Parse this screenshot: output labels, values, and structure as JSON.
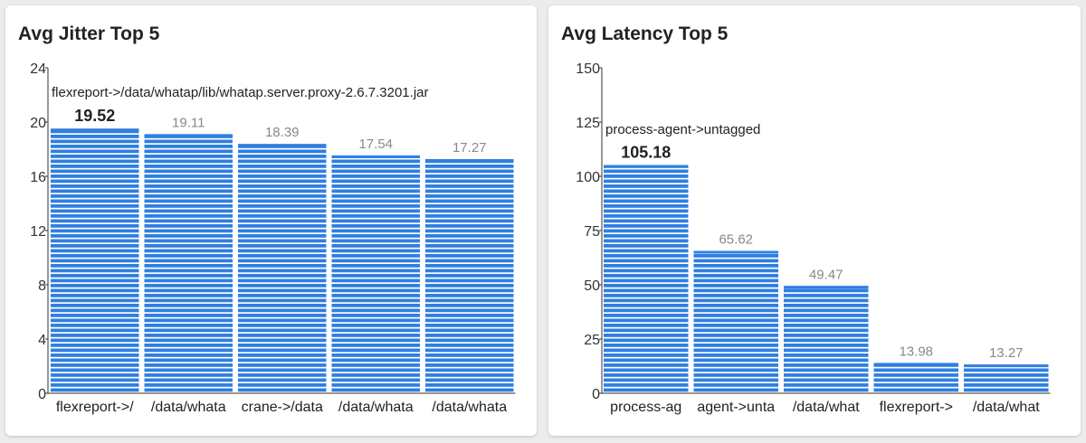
{
  "bar_color": "#2f7fe0",
  "stripe_color": "#ffffff",
  "value_color": "#888888",
  "highlight_value_color": "#222222",
  "panels": [
    {
      "title": "Avg Jitter Top 5",
      "top_label": "flexreport->/data/whatap/lib/whatap.server.proxy-2.6.7.3201.jar"
    },
    {
      "title": "Avg Latency Top 5",
      "top_label": "process-agent->untagged"
    }
  ],
  "chart_data": [
    {
      "type": "bar",
      "title": "Avg Jitter Top 5",
      "categories": [
        "flexreport->/",
        "/data/whata",
        "crane->/data",
        "/data/whata",
        "/data/whata"
      ],
      "values": [
        19.52,
        19.11,
        18.39,
        17.54,
        17.27
      ],
      "value_labels": [
        "19.52",
        "19.11",
        "18.39",
        "17.54",
        "17.27"
      ],
      "yticks": [
        0,
        4,
        8,
        12,
        16,
        20,
        24
      ],
      "ylim": [
        0,
        24
      ],
      "highlight_index": 0,
      "xlabel": "",
      "ylabel": "",
      "grid": false
    },
    {
      "type": "bar",
      "title": "Avg Latency Top 5",
      "categories": [
        "process-ag",
        "agent->unta",
        "/data/what",
        "flexreport->",
        "/data/what"
      ],
      "values": [
        105.18,
        65.62,
        49.47,
        13.98,
        13.27
      ],
      "value_labels": [
        "105.18",
        "65.62",
        "49.47",
        "13.98",
        "13.27"
      ],
      "yticks": [
        0,
        25,
        50,
        75,
        100,
        125,
        150
      ],
      "ylim": [
        0,
        150
      ],
      "highlight_index": 0,
      "xlabel": "",
      "ylabel": "",
      "grid": false
    }
  ]
}
